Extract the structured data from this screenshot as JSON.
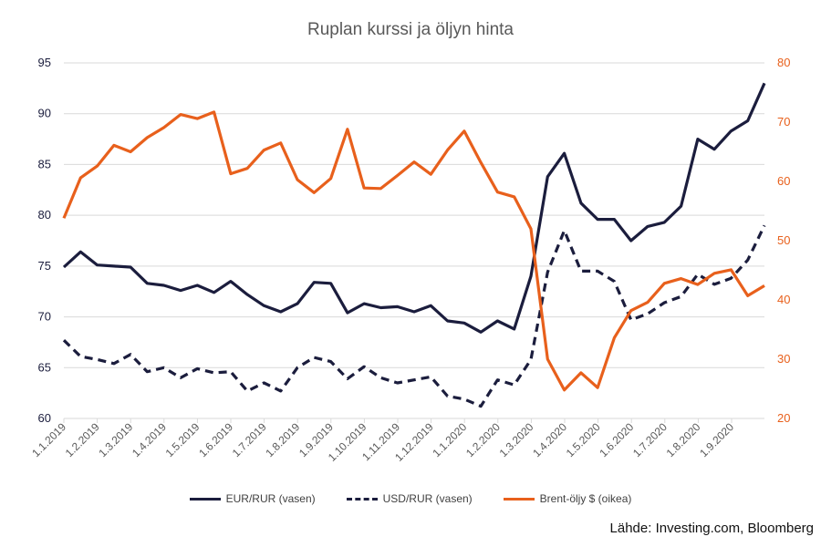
{
  "chart_data": {
    "type": "line",
    "title": "Ruplan kurssi ja öljyn hinta",
    "source": "Lähde: Investing.com, Bloomberg",
    "x_tick_labels": [
      "1.1.2019",
      "1.2.2019",
      "1.3.2019",
      "1.4.2019",
      "1.5.2019",
      "1.6.2019",
      "1.7.2019",
      "1.8.2019",
      "1.9.2019",
      "1.10.2019",
      "1.11.2019",
      "1.12.2019",
      "1.1.2020",
      "1.2.2020",
      "1.3.2020",
      "1.4.2020",
      "1.5.2020",
      "1.6.2020",
      "1.7.2020",
      "1.8.2020",
      "1.9.2020"
    ],
    "y_left": {
      "min": 60,
      "max": 95,
      "step": 5,
      "ticks": [
        "60",
        "65",
        "70",
        "75",
        "80",
        "85",
        "90",
        "95"
      ]
    },
    "y_right": {
      "min": 20,
      "max": 80,
      "step": 10,
      "ticks": [
        "20",
        "30",
        "40",
        "50",
        "60",
        "70",
        "80"
      ]
    },
    "grid": true,
    "legend_position": "bottom",
    "series": [
      {
        "name": "EUR/RUR (vasen)",
        "axis": "left",
        "style": "solid",
        "color": "#1b1d3d",
        "values": [
          74.9,
          76.4,
          75.1,
          75.0,
          74.9,
          73.3,
          73.1,
          72.6,
          73.1,
          72.4,
          73.5,
          72.2,
          71.1,
          70.5,
          71.3,
          73.4,
          73.3,
          70.4,
          71.3,
          70.9,
          71.0,
          70.5,
          71.1,
          69.6,
          69.4,
          68.5,
          69.6,
          68.8,
          74.0,
          83.8,
          86.1,
          81.2,
          79.6,
          79.6,
          77.5,
          78.9,
          79.3,
          80.9,
          87.5,
          86.5,
          88.3,
          89.3,
          93.0
        ]
      },
      {
        "name": "USD/RUR (vasen)",
        "axis": "left",
        "style": "dashed",
        "color": "#1b1d3d",
        "values": [
          67.7,
          66.1,
          65.8,
          65.4,
          66.3,
          64.6,
          65.0,
          64.0,
          64.9,
          64.5,
          64.6,
          62.7,
          63.5,
          62.7,
          65.0,
          66.0,
          65.6,
          63.9,
          65.1,
          64.0,
          63.5,
          63.8,
          64.1,
          62.2,
          61.9,
          61.2,
          63.8,
          63.3,
          65.8,
          74.4,
          78.5,
          74.5,
          74.5,
          73.5,
          69.7,
          70.3,
          71.4,
          72.0,
          74.2,
          73.2,
          73.8,
          75.6,
          79.0
        ]
      },
      {
        "name": "Brent-öljy $ (oikea)",
        "axis": "right",
        "style": "solid",
        "color": "#e8601c",
        "values": [
          53.8,
          60.6,
          62.6,
          66.1,
          65.0,
          67.4,
          69.1,
          71.3,
          70.6,
          71.7,
          61.3,
          62.2,
          65.3,
          66.5,
          60.3,
          58.1,
          60.5,
          68.8,
          58.9,
          58.8,
          61.0,
          63.3,
          61.2,
          65.3,
          68.5,
          63.2,
          58.2,
          57.4,
          52.0,
          30.0,
          24.8,
          27.7,
          25.2,
          33.6,
          38.2,
          39.6,
          42.8,
          43.6,
          42.6,
          44.5,
          45.1,
          40.7,
          42.4
        ]
      }
    ]
  },
  "legend": {
    "eur": "EUR/RUR (vasen)",
    "usd": "USD/RUR (vasen)",
    "brent": "Brent-öljy $ (oikea)"
  }
}
